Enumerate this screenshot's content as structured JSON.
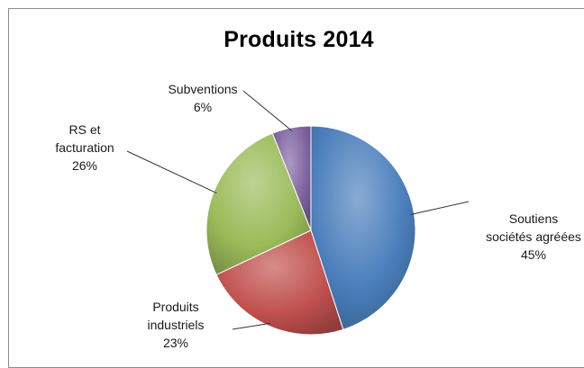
{
  "chart_data": {
    "type": "pie",
    "title": "Produits 2014",
    "slices": [
      {
        "label": [
          "Soutiens",
          "sociétés agréées"
        ],
        "value": 45,
        "value_label": "45%",
        "color": "#4a7ebb"
      },
      {
        "label": [
          "Produits",
          "industriels"
        ],
        "value": 23,
        "value_label": "23%",
        "color": "#c0504d"
      },
      {
        "label": [
          "RS et",
          "facturation"
        ],
        "value": 26,
        "value_label": "26%",
        "color": "#9bbb59"
      },
      {
        "label": [
          "Subventions"
        ],
        "value": 6,
        "value_label": "6%",
        "color": "#8064a2"
      }
    ],
    "legend": "none",
    "3d_effect": true
  }
}
